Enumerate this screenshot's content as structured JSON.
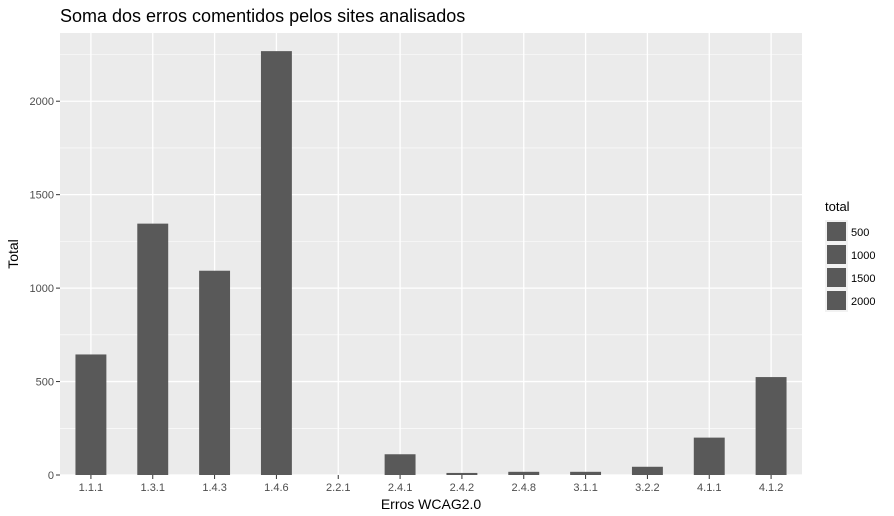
{
  "chart_data": {
    "type": "bar",
    "title": "Soma dos erros comentidos pelos sites analisados",
    "xlabel": "Erros WCAG2.0",
    "ylabel": "Total",
    "categories": [
      "1.1.1",
      "1.3.1",
      "1.4.3",
      "1.4.6",
      "2.2.1",
      "2.4.1",
      "2.4.2",
      "2.4.8",
      "3.1.1",
      "3.2.2",
      "4.1.1",
      "4.1.2"
    ],
    "values": [
      645,
      1345,
      1093,
      2268,
      0,
      111,
      11,
      17,
      17,
      44,
      200,
      524
    ],
    "ylim": [
      0,
      2365
    ],
    "yticks": [
      0,
      500,
      1000,
      1500,
      2000
    ],
    "grid": true,
    "bar_color": "#595959",
    "panel_color": "#ebebeb",
    "legend": {
      "title": "total",
      "placement": "right",
      "entries": [
        "500",
        "1000",
        "1500",
        "2000"
      ]
    }
  }
}
